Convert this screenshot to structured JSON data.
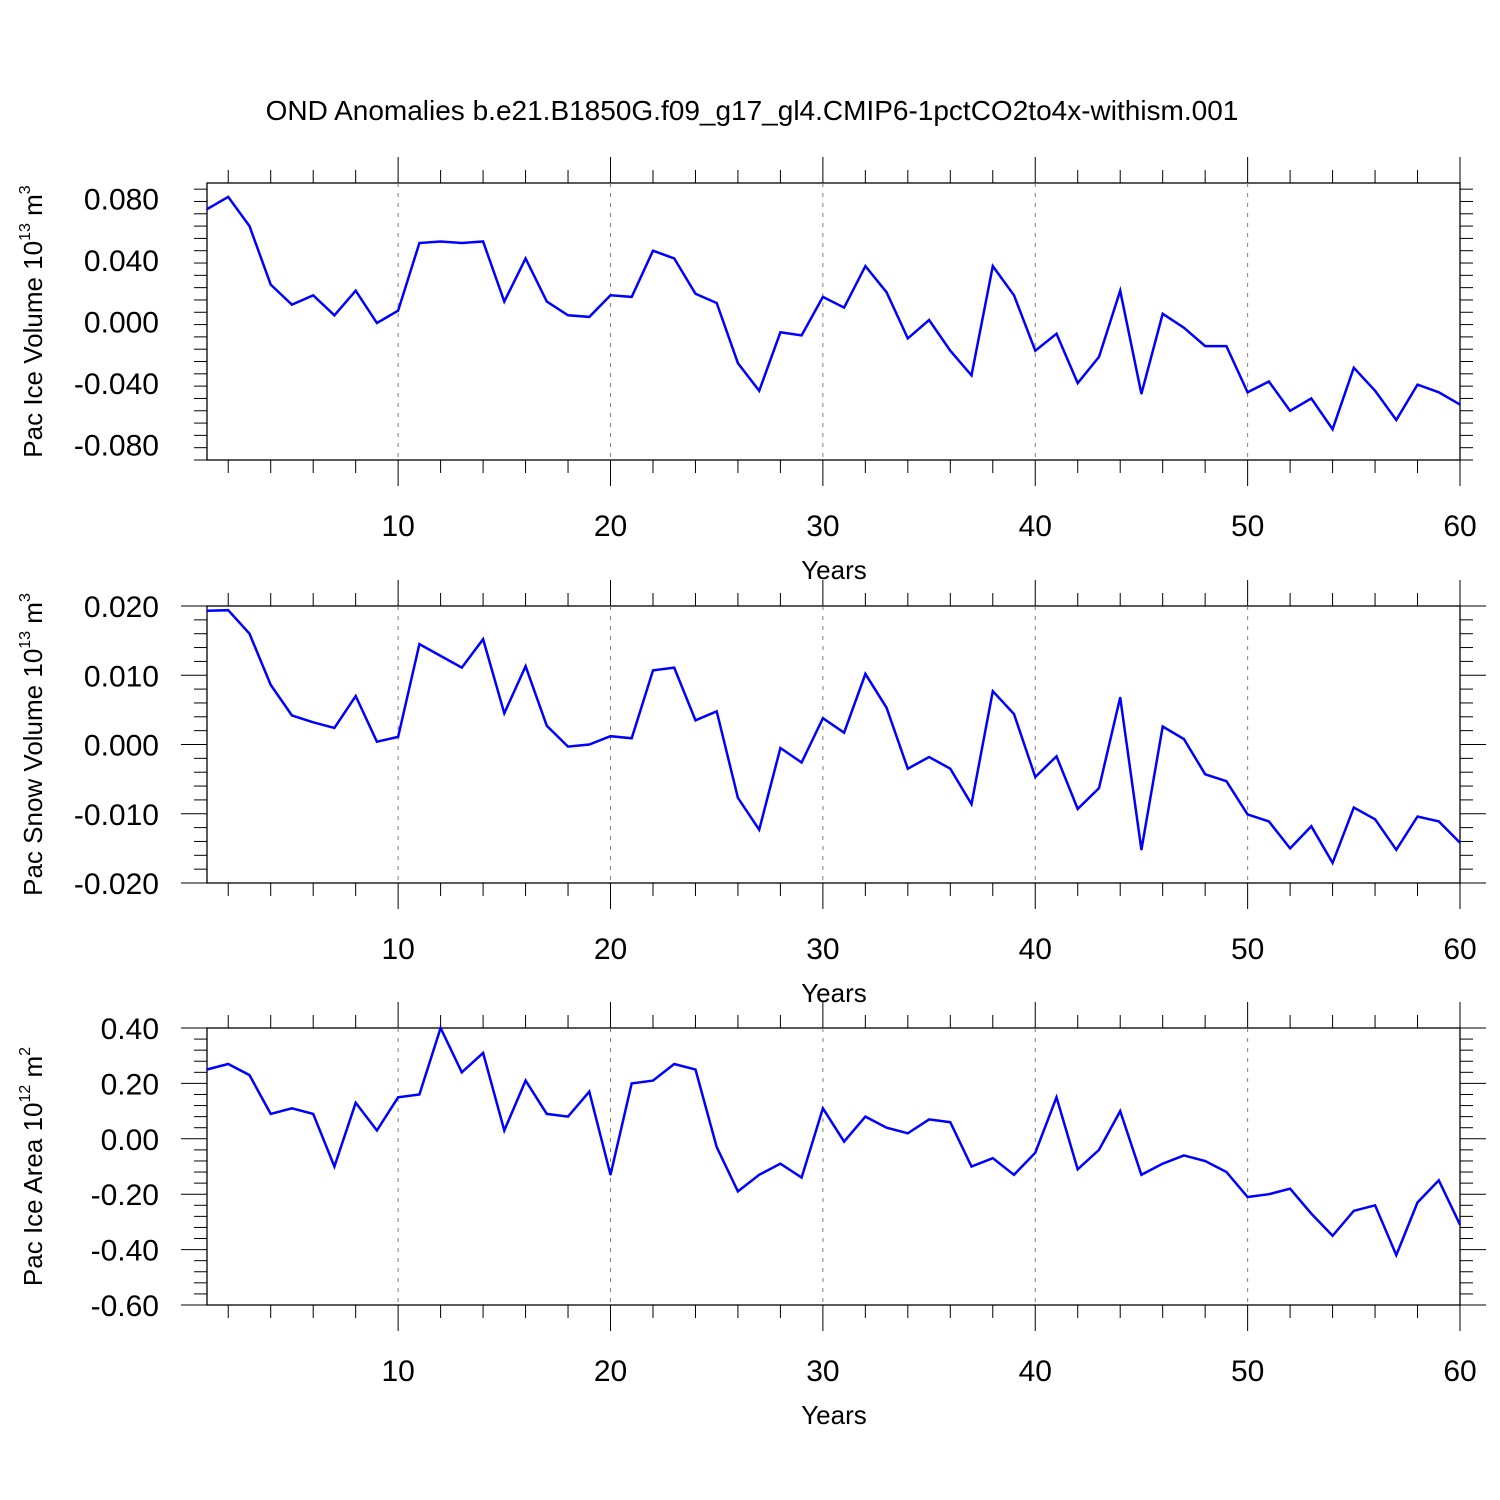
{
  "title": "OND Anomalies b.e21.B1850G.f09_g17_gl4.CMIP6-1pctCO2to4x-withism.001",
  "chart_data": [
    {
      "type": "line",
      "title": "",
      "xlabel": "Years",
      "ylabel_base": "Pac Ice Volume 10",
      "ylabel_exp": "13",
      "ylabel_unit": " m",
      "ylabel_unit_exp": "3",
      "xlim": [
        1,
        60
      ],
      "ylim": [
        -0.09,
        0.09
      ],
      "xticks": [
        10,
        20,
        30,
        40,
        50,
        60
      ],
      "yticks": [
        -0.08,
        -0.04,
        0.0,
        0.04,
        0.08
      ],
      "ytick_labels": [
        "-0.080",
        "-0.040",
        "0.000",
        "0.040",
        "0.080"
      ],
      "grid": "vertical dashed at major x ticks",
      "color": "#0000ff",
      "x": [
        1,
        2,
        3,
        4,
        5,
        6,
        7,
        8,
        9,
        10,
        11,
        12,
        13,
        14,
        15,
        16,
        17,
        18,
        19,
        20,
        21,
        22,
        23,
        24,
        25,
        26,
        27,
        28,
        29,
        30,
        31,
        32,
        33,
        34,
        35,
        36,
        37,
        38,
        39,
        40,
        41,
        42,
        43,
        44,
        45,
        46,
        47,
        48,
        49,
        50,
        51,
        52,
        53,
        54,
        55,
        56,
        57,
        58,
        59,
        60
      ],
      "y": [
        0.073,
        0.081,
        0.062,
        0.024,
        0.011,
        0.017,
        0.004,
        0.02,
        -0.001,
        0.007,
        0.051,
        0.052,
        0.051,
        0.052,
        0.013,
        0.041,
        0.013,
        0.004,
        0.003,
        0.017,
        0.016,
        0.046,
        0.041,
        0.018,
        0.012,
        -0.027,
        -0.045,
        -0.007,
        -0.009,
        0.016,
        0.009,
        0.036,
        0.019,
        -0.011,
        0.001,
        -0.019,
        -0.035,
        0.036,
        0.017,
        -0.019,
        -0.008,
        -0.04,
        -0.023,
        0.02,
        -0.047,
        0.005,
        -0.004,
        -0.016,
        -0.016,
        -0.046,
        -0.039,
        -0.058,
        -0.05,
        -0.07,
        -0.03,
        -0.045,
        -0.064,
        -0.041,
        -0.046,
        -0.054
      ]
    },
    {
      "type": "line",
      "title": "",
      "xlabel": "Years",
      "ylabel_base": "Pac Snow Volume 10",
      "ylabel_exp": "13",
      "ylabel_unit": " m",
      "ylabel_unit_exp": "3",
      "xlim": [
        1,
        60
      ],
      "ylim": [
        -0.02,
        0.02
      ],
      "xticks": [
        10,
        20,
        30,
        40,
        50,
        60
      ],
      "yticks": [
        -0.02,
        -0.01,
        0.0,
        0.01,
        0.02
      ],
      "ytick_labels": [
        "-0.020",
        "-0.010",
        "0.000",
        "0.010",
        "0.020"
      ],
      "grid": "vertical dashed at major x ticks",
      "color": "#0000ff",
      "x": [
        1,
        2,
        3,
        4,
        5,
        6,
        7,
        8,
        9,
        10,
        11,
        12,
        13,
        14,
        15,
        16,
        17,
        18,
        19,
        20,
        21,
        22,
        23,
        24,
        25,
        26,
        27,
        28,
        29,
        30,
        31,
        32,
        33,
        34,
        35,
        36,
        37,
        38,
        39,
        40,
        41,
        42,
        43,
        44,
        45,
        46,
        47,
        48,
        49,
        50,
        51,
        52,
        53,
        54,
        55,
        56,
        57,
        58,
        59,
        60
      ],
      "y": [
        0.0193,
        0.0194,
        0.016,
        0.0086,
        0.0042,
        0.0032,
        0.0024,
        0.007,
        0.0004,
        0.0011,
        0.0145,
        0.0128,
        0.0111,
        0.0152,
        0.0045,
        0.0113,
        0.0027,
        -0.0003,
        0.0,
        0.0012,
        0.0009,
        0.0107,
        0.0111,
        0.0035,
        0.0048,
        -0.0077,
        -0.0123,
        -0.0005,
        -0.0026,
        0.0038,
        0.0017,
        0.0102,
        0.0053,
        -0.0035,
        -0.0018,
        -0.0035,
        -0.0086,
        0.0077,
        0.0044,
        -0.0047,
        -0.0017,
        -0.0093,
        -0.0063,
        0.0068,
        -0.0152,
        0.0026,
        0.0008,
        -0.0043,
        -0.0053,
        -0.0101,
        -0.0111,
        -0.015,
        -0.0118,
        -0.0171,
        -0.0091,
        -0.0108,
        -0.0152,
        -0.0104,
        -0.0111,
        -0.0142
      ]
    },
    {
      "type": "line",
      "title": "",
      "xlabel": "Years",
      "ylabel_base": "Pac Ice Area 10",
      "ylabel_exp": "12",
      "ylabel_unit": " m",
      "ylabel_unit_exp": "2",
      "xlim": [
        1,
        60
      ],
      "ylim": [
        -0.6,
        0.4
      ],
      "xticks": [
        10,
        20,
        30,
        40,
        50,
        60
      ],
      "yticks": [
        -0.6,
        -0.4,
        -0.2,
        0.0,
        0.2,
        0.4
      ],
      "ytick_labels": [
        "-0.60",
        "-0.40",
        "-0.20",
        "0.00",
        "0.20",
        "0.40"
      ],
      "grid": "vertical dashed at major x ticks",
      "color": "#0000ff",
      "x": [
        1,
        2,
        3,
        4,
        5,
        6,
        7,
        8,
        9,
        10,
        11,
        12,
        13,
        14,
        15,
        16,
        17,
        18,
        19,
        20,
        21,
        22,
        23,
        24,
        25,
        26,
        27,
        28,
        29,
        30,
        31,
        32,
        33,
        34,
        35,
        36,
        37,
        38,
        39,
        40,
        41,
        42,
        43,
        44,
        45,
        46,
        47,
        48,
        49,
        50,
        51,
        52,
        53,
        54,
        55,
        56,
        57,
        58,
        59,
        60
      ],
      "y": [
        0.25,
        0.27,
        0.23,
        0.09,
        0.11,
        0.09,
        -0.1,
        0.13,
        0.03,
        0.15,
        0.16,
        0.4,
        0.24,
        0.31,
        0.03,
        0.21,
        0.09,
        0.08,
        0.17,
        -0.13,
        0.2,
        0.21,
        0.27,
        0.25,
        -0.03,
        -0.19,
        -0.13,
        -0.09,
        -0.14,
        0.11,
        -0.01,
        0.08,
        0.04,
        0.02,
        0.07,
        0.06,
        -0.1,
        -0.07,
        -0.13,
        -0.05,
        0.15,
        -0.11,
        -0.04,
        0.1,
        -0.13,
        -0.09,
        -0.06,
        -0.08,
        -0.12,
        -0.21,
        -0.2,
        -0.18,
        -0.27,
        -0.35,
        -0.26,
        -0.24,
        -0.42,
        -0.23,
        -0.15,
        -0.31
      ]
    }
  ]
}
